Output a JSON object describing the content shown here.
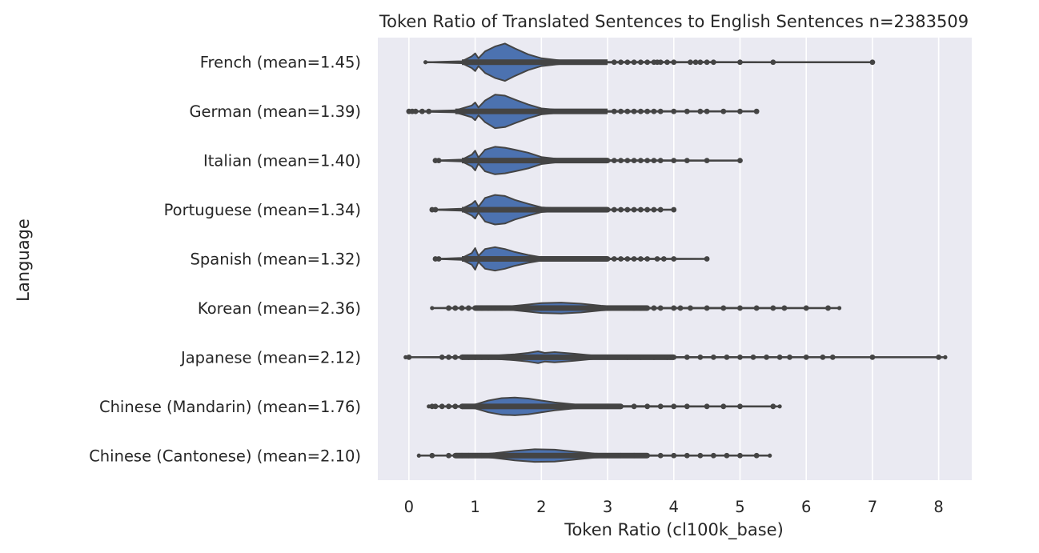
{
  "chart_data": {
    "type": "violin",
    "orientation": "horizontal",
    "title": "Token Ratio of Translated Sentences to English Sentences n=2383509",
    "xlabel": "Token Ratio (cl100k_base)",
    "ylabel": "Language",
    "xlim": [
      -0.47,
      8.5
    ],
    "xticks": [
      0,
      1,
      2,
      3,
      4,
      5,
      6,
      7,
      8
    ],
    "grid": true,
    "background": "#eaeaf2",
    "gridColor": "#ffffff",
    "fillColor": "#4c72b0",
    "lineColor": "#444444",
    "categories": [
      "French (mean=1.45)",
      "German (mean=1.39)",
      "Italian (mean=1.40)",
      "Portuguese (mean=1.34)",
      "Spanish (mean=1.32)",
      "Korean (mean=2.36)",
      "Japanese (mean=2.12)",
      "Chinese (Mandarin) (mean=1.76)",
      "Chinese (Cantonese) (mean=2.10)"
    ],
    "series": [
      {
        "label": "French (mean=1.45)",
        "mean": 1.45,
        "min": 0.25,
        "max": 7.0,
        "densityPeak": 1.45,
        "density": [
          [
            0.25,
            0
          ],
          [
            0.8,
            0.05
          ],
          [
            0.95,
            0.3
          ],
          [
            1.0,
            0.45
          ],
          [
            1.05,
            0.2
          ],
          [
            1.15,
            0.55
          ],
          [
            1.3,
            0.8
          ],
          [
            1.45,
            0.95
          ],
          [
            1.6,
            0.7
          ],
          [
            1.8,
            0.4
          ],
          [
            2.0,
            0.2
          ],
          [
            2.3,
            0.08
          ],
          [
            3.0,
            0.02
          ],
          [
            7.0,
            0
          ]
        ],
        "outliers": [
          3.1,
          3.2,
          3.3,
          3.4,
          3.5,
          3.6,
          3.7,
          3.75,
          3.8,
          3.9,
          4.0,
          4.25,
          4.33,
          4.4,
          4.5,
          4.6,
          5.0,
          5.5,
          7.0
        ]
      },
      {
        "label": "German (mean=1.39)",
        "mean": 1.39,
        "min": 0.0,
        "max": 5.25,
        "densityPeak": 1.4,
        "density": [
          [
            0.0,
            0
          ],
          [
            0.7,
            0.05
          ],
          [
            0.95,
            0.3
          ],
          [
            1.0,
            0.45
          ],
          [
            1.05,
            0.2
          ],
          [
            1.15,
            0.55
          ],
          [
            1.3,
            0.85
          ],
          [
            1.45,
            0.8
          ],
          [
            1.6,
            0.6
          ],
          [
            1.8,
            0.35
          ],
          [
            2.0,
            0.15
          ],
          [
            2.3,
            0.06
          ],
          [
            3.0,
            0.02
          ],
          [
            5.25,
            0
          ]
        ],
        "outliers": [
          0.0,
          0.05,
          0.1,
          0.2,
          0.3,
          3.1,
          3.2,
          3.3,
          3.4,
          3.5,
          3.6,
          3.7,
          3.8,
          4.0,
          4.2,
          4.4,
          4.5,
          4.75,
          5.0,
          5.25
        ]
      },
      {
        "label": "Italian (mean=1.40)",
        "mean": 1.4,
        "min": 0.4,
        "max": 5.0,
        "densityPeak": 1.4,
        "density": [
          [
            0.4,
            0
          ],
          [
            0.8,
            0.05
          ],
          [
            0.95,
            0.3
          ],
          [
            1.0,
            0.5
          ],
          [
            1.05,
            0.15
          ],
          [
            1.15,
            0.55
          ],
          [
            1.3,
            0.7
          ],
          [
            1.45,
            0.65
          ],
          [
            1.6,
            0.55
          ],
          [
            1.8,
            0.4
          ],
          [
            2.0,
            0.18
          ],
          [
            2.3,
            0.06
          ],
          [
            3.0,
            0.02
          ],
          [
            5.0,
            0
          ]
        ],
        "outliers": [
          0.4,
          0.45,
          3.0,
          3.1,
          3.2,
          3.3,
          3.4,
          3.5,
          3.6,
          3.7,
          3.8,
          4.0,
          4.2,
          4.5,
          5.0
        ]
      },
      {
        "label": "Portuguese (mean=1.34)",
        "mean": 1.34,
        "min": 0.35,
        "max": 4.0,
        "densityPeak": 1.33,
        "density": [
          [
            0.35,
            0
          ],
          [
            0.8,
            0.05
          ],
          [
            0.95,
            0.3
          ],
          [
            1.0,
            0.45
          ],
          [
            1.05,
            0.15
          ],
          [
            1.15,
            0.6
          ],
          [
            1.3,
            0.75
          ],
          [
            1.45,
            0.7
          ],
          [
            1.6,
            0.5
          ],
          [
            1.8,
            0.3
          ],
          [
            2.0,
            0.12
          ],
          [
            2.3,
            0.05
          ],
          [
            3.0,
            0.02
          ],
          [
            4.0,
            0
          ]
        ],
        "outliers": [
          0.35,
          0.4,
          3.0,
          3.1,
          3.2,
          3.3,
          3.4,
          3.5,
          3.6,
          3.7,
          3.8,
          4.0
        ]
      },
      {
        "label": "Spanish (mean=1.32)",
        "mean": 1.32,
        "min": 0.4,
        "max": 4.5,
        "densityPeak": 1.3,
        "density": [
          [
            0.4,
            0
          ],
          [
            0.8,
            0.05
          ],
          [
            0.95,
            0.3
          ],
          [
            1.0,
            0.55
          ],
          [
            1.05,
            0.15
          ],
          [
            1.15,
            0.5
          ],
          [
            1.3,
            0.6
          ],
          [
            1.45,
            0.5
          ],
          [
            1.6,
            0.35
          ],
          [
            1.8,
            0.2
          ],
          [
            2.0,
            0.08
          ],
          [
            2.3,
            0.04
          ],
          [
            3.0,
            0.02
          ],
          [
            4.5,
            0
          ]
        ],
        "outliers": [
          0.4,
          0.45,
          3.0,
          3.1,
          3.2,
          3.3,
          3.4,
          3.5,
          3.6,
          3.75,
          3.85,
          4.0,
          4.5
        ]
      },
      {
        "label": "Korean (mean=2.36)",
        "mean": 2.36,
        "min": 0.35,
        "max": 6.5,
        "densityPeak": 2.3,
        "density": [
          [
            0.35,
            0
          ],
          [
            1.0,
            0.02
          ],
          [
            1.5,
            0.08
          ],
          [
            1.8,
            0.18
          ],
          [
            2.0,
            0.25
          ],
          [
            2.3,
            0.28
          ],
          [
            2.6,
            0.22
          ],
          [
            2.9,
            0.12
          ],
          [
            3.2,
            0.05
          ],
          [
            3.6,
            0.02
          ],
          [
            6.5,
            0
          ]
        ],
        "outliers": [
          0.6,
          0.7,
          0.8,
          0.9,
          1.0,
          1.1,
          1.2,
          1.3,
          1.4,
          3.4,
          3.5,
          3.6,
          3.7,
          3.8,
          4.0,
          4.1,
          4.25,
          4.5,
          4.75,
          5.0,
          5.25,
          5.5,
          5.67,
          6.0,
          6.33
        ]
      },
      {
        "label": "Japanese (mean=2.12)",
        "mean": 2.12,
        "min": -0.05,
        "max": 8.1,
        "densityPeak": 2.0,
        "density": [
          [
            -0.05,
            0
          ],
          [
            0.8,
            0.02
          ],
          [
            1.2,
            0.06
          ],
          [
            1.6,
            0.15
          ],
          [
            1.8,
            0.22
          ],
          [
            1.95,
            0.3
          ],
          [
            2.05,
            0.22
          ],
          [
            2.2,
            0.26
          ],
          [
            2.5,
            0.18
          ],
          [
            2.8,
            0.08
          ],
          [
            3.2,
            0.03
          ],
          [
            4.0,
            0.01
          ],
          [
            8.1,
            0
          ]
        ],
        "outliers": [
          0.0,
          0.5,
          0.6,
          0.7,
          0.8,
          0.9,
          1.0,
          1.1,
          1.2,
          3.3,
          3.5,
          3.7,
          3.9,
          4.0,
          4.2,
          4.4,
          4.6,
          4.8,
          5.0,
          5.2,
          5.4,
          5.6,
          5.75,
          6.0,
          6.25,
          6.4,
          7.0,
          8.0
        ]
      },
      {
        "label": "Chinese (Mandarin) (mean=1.76)",
        "mean": 1.76,
        "min": 0.3,
        "max": 5.6,
        "densityPeak": 1.6,
        "density": [
          [
            0.3,
            0
          ],
          [
            0.8,
            0.03
          ],
          [
            1.0,
            0.1
          ],
          [
            1.2,
            0.3
          ],
          [
            1.4,
            0.42
          ],
          [
            1.6,
            0.45
          ],
          [
            1.8,
            0.4
          ],
          [
            2.0,
            0.3
          ],
          [
            2.2,
            0.2
          ],
          [
            2.5,
            0.1
          ],
          [
            2.8,
            0.04
          ],
          [
            3.2,
            0.02
          ],
          [
            5.6,
            0
          ]
        ],
        "outliers": [
          0.35,
          0.4,
          0.5,
          0.6,
          0.7,
          0.8,
          3.0,
          3.2,
          3.4,
          3.6,
          3.8,
          4.0,
          4.2,
          4.5,
          4.75,
          5.0,
          5.5
        ]
      },
      {
        "label": "Chinese (Cantonese) (mean=2.10)",
        "mean": 2.1,
        "min": 0.15,
        "max": 5.45,
        "densityPeak": 2.0,
        "density": [
          [
            0.15,
            0
          ],
          [
            0.7,
            0.01
          ],
          [
            1.0,
            0.03
          ],
          [
            1.3,
            0.12
          ],
          [
            1.6,
            0.24
          ],
          [
            1.9,
            0.32
          ],
          [
            2.2,
            0.3
          ],
          [
            2.5,
            0.2
          ],
          [
            2.8,
            0.1
          ],
          [
            3.2,
            0.04
          ],
          [
            3.6,
            0.015
          ],
          [
            5.45,
            0
          ]
        ],
        "outliers": [
          0.35,
          0.6,
          0.7,
          0.8,
          0.9,
          1.0,
          1.1,
          3.2,
          3.4,
          3.6,
          3.8,
          4.0,
          4.2,
          4.4,
          4.6,
          4.8,
          5.0,
          5.25
        ]
      }
    ]
  }
}
